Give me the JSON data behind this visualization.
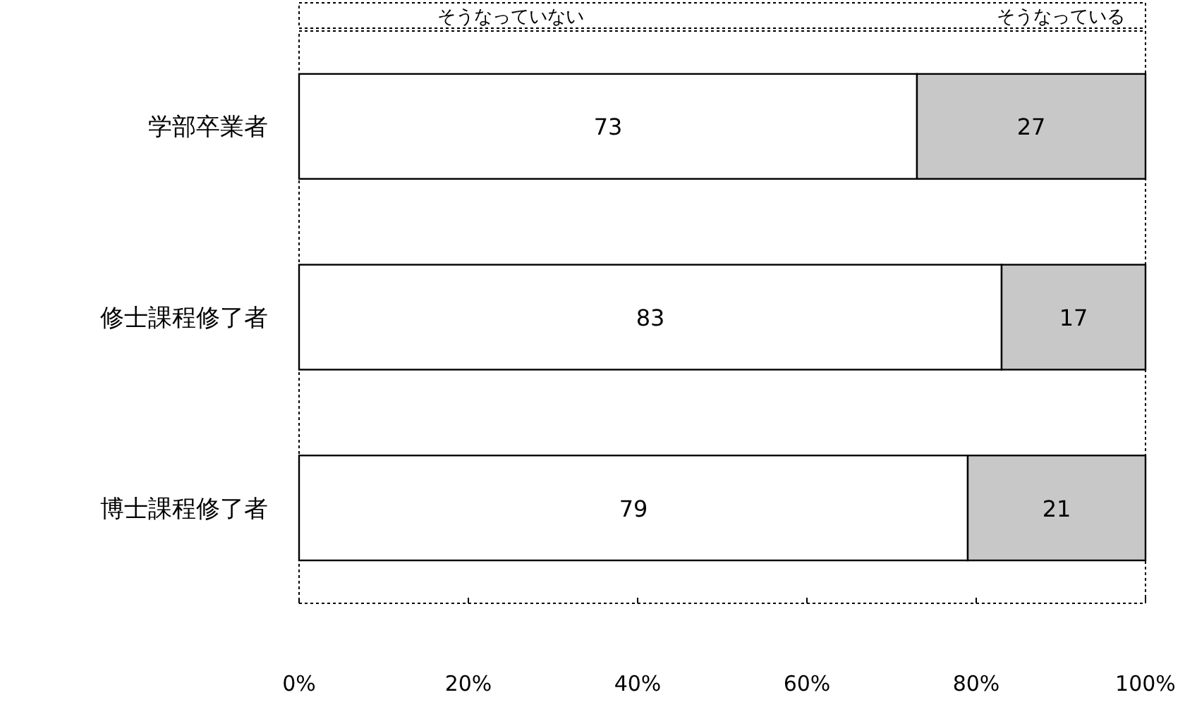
{
  "chart_data": {
    "type": "bar",
    "orientation": "horizontal",
    "stacked": true,
    "data_labels": true,
    "legend": "top",
    "grid": false,
    "categories": [
      "学部卒業者",
      "修士課程修了者",
      "博士課程修了者"
    ],
    "series": [
      {
        "name": "そうなっていない",
        "color": "#ffffff",
        "values": [
          73,
          83,
          79
        ]
      },
      {
        "name": "そうなっている",
        "color": "#c8c8c8",
        "values": [
          27,
          17,
          21
        ]
      }
    ],
    "xlim": [
      0,
      100
    ],
    "xticks": [
      {
        "value": 0,
        "label": "0%"
      },
      {
        "value": 20,
        "label": "20%"
      },
      {
        "value": 40,
        "label": "40%"
      },
      {
        "value": 60,
        "label": "60%"
      },
      {
        "value": 80,
        "label": "80%"
      },
      {
        "value": 100,
        "label": "100%"
      }
    ]
  }
}
